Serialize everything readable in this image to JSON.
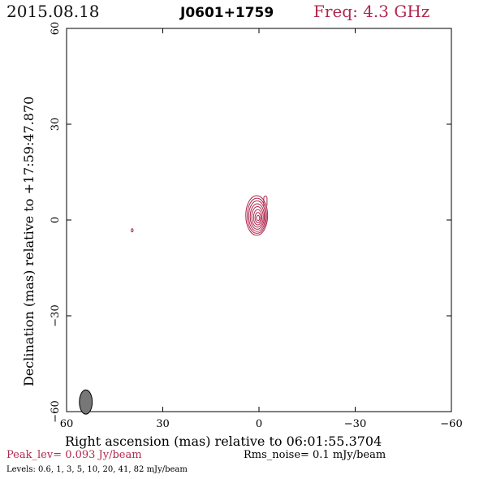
{
  "header": {
    "date": "2015.08.18",
    "source": "J0601+1759",
    "freq": "Freq: 4.3 GHz"
  },
  "colors": {
    "contour": "#b0284f",
    "accent": "#b0284f",
    "beam_fill": "#777777",
    "frame": "#000000"
  },
  "footer": {
    "peak": "Peak_lev=  0.093 Jy/beam",
    "rms": "Rms_noise=  0.1 mJy/beam",
    "levels": "Levels: 0.6,    1,    3,    5,   10,   20,   41,   82 mJy/beam"
  },
  "chart_data": {
    "type": "contour",
    "title": "",
    "xlabel": "Right ascension (mas) relative to 06:01:55.3704",
    "ylabel": "Declination (mas) relative to +17:59:47.870",
    "xlim": [
      60,
      -60
    ],
    "ylim": [
      -60,
      60
    ],
    "xticks": [
      60,
      30,
      0,
      -30,
      -60
    ],
    "yticks": [
      60,
      30,
      0,
      -30,
      -60
    ],
    "xtick_labels": [
      "60",
      "30",
      "0",
      "−30",
      "−60"
    ],
    "ytick_labels": [
      "60",
      "30",
      "0",
      "−30",
      "−60"
    ],
    "units": "mJy/beam",
    "peak_jy_per_beam": 0.093,
    "rms_mjy_per_beam": 0.1,
    "levels": [
      0.6,
      1,
      3,
      5,
      10,
      20,
      41,
      82
    ],
    "components": [
      {
        "x": 0.2,
        "y": 0.5,
        "contours": [
          {
            "level": 0.6,
            "rx": 3.4,
            "ry": 6.2
          },
          {
            "level": 1,
            "rx": 3.0,
            "ry": 5.5
          },
          {
            "level": 3,
            "rx": 2.6,
            "ry": 4.8
          },
          {
            "level": 5,
            "rx": 2.2,
            "ry": 4.0
          },
          {
            "level": 10,
            "rx": 1.8,
            "ry": 3.2
          },
          {
            "level": 20,
            "rx": 1.3,
            "ry": 2.4
          },
          {
            "level": 41,
            "rx": 0.9,
            "ry": 1.6
          },
          {
            "level": 82,
            "rx": 0.5,
            "ry": 0.8
          }
        ]
      },
      {
        "x": 39.5,
        "y": -3.3,
        "contours": [
          {
            "level": 0.6,
            "rx": 0.3,
            "ry": 0.5
          }
        ]
      }
    ],
    "extension": {
      "x": -2.0,
      "y": 6.5,
      "level": 0.6
    },
    "beam": {
      "x": 54.0,
      "y": -57.0,
      "major": 3.8,
      "minor": 2.0
    }
  }
}
